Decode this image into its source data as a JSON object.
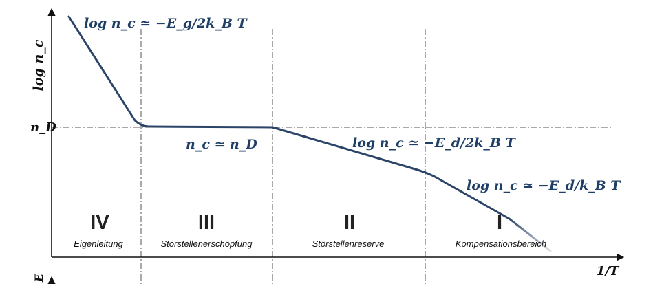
{
  "axes": {
    "y_label": "log n_c",
    "x_label": "1/T",
    "lower_y_label": "E",
    "nd_label": "n_D"
  },
  "annotations": {
    "intrinsic": "log n_c ≃ −E_g/2k_B T",
    "exhaustion": "n_c ≃ n_D",
    "reserve": "log n_c ≃ −E_d/2k_B T",
    "compensation": "log n_c ≃ −E_d/k_B T"
  },
  "regions": [
    {
      "numeral": "IV",
      "name": "Eigenleitung"
    },
    {
      "numeral": "III",
      "name": "Störstellenerschöpfung"
    },
    {
      "numeral": "II",
      "name": "Störstellenreserve"
    },
    {
      "numeral": "I",
      "name": "Kompensationsbereich"
    }
  ],
  "colors": {
    "curve": "#2b4468",
    "math_text": "#1f3f66",
    "axes": "#111111",
    "guides": "#555555"
  }
}
